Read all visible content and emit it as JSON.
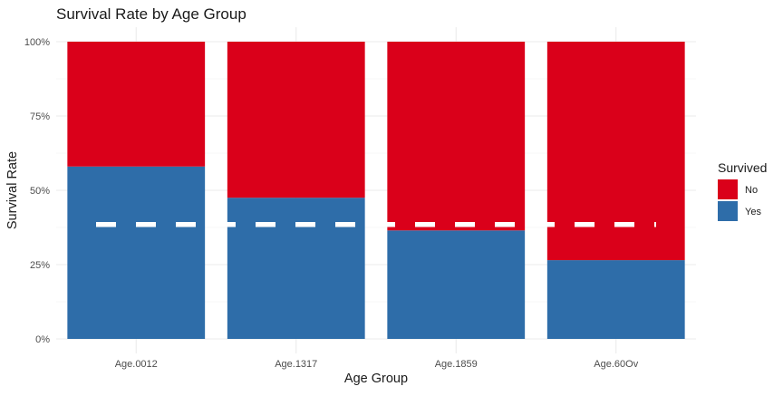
{
  "chart_data": {
    "type": "bar",
    "stacked": true,
    "title": "Survival Rate by Age Group",
    "xlabel": "Age Group",
    "ylabel": "Survival Rate",
    "categories": [
      "Age.0012",
      "Age.1317",
      "Age.1859",
      "Age.60Ov"
    ],
    "ylim": [
      0,
      1
    ],
    "yticks": [
      0,
      0.25,
      0.5,
      0.75,
      1
    ],
    "ytick_labels": [
      "0%",
      "25%",
      "50%",
      "75%",
      "100%"
    ],
    "grid": true,
    "series": [
      {
        "name": "Yes",
        "color": "#2E6DA9",
        "values": [
          0.58,
          0.475,
          0.365,
          0.265
        ]
      },
      {
        "name": "No",
        "color": "#DA001A",
        "values": [
          0.42,
          0.525,
          0.635,
          0.735
        ]
      }
    ],
    "reference_line": {
      "value": 0.385,
      "style": "dashed",
      "color": "#ffffff"
    },
    "legend": {
      "title": "Survived",
      "placement": "right",
      "entries": [
        {
          "label": "No",
          "color": "#DA001A"
        },
        {
          "label": "Yes",
          "color": "#2E6DA9"
        }
      ]
    }
  }
}
